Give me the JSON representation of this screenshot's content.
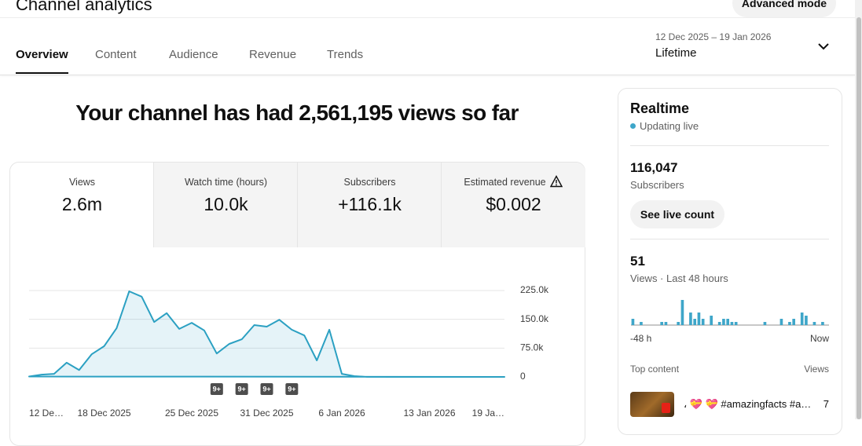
{
  "header": {
    "title": "Channel analytics",
    "advanced_mode": "Advanced mode"
  },
  "tabs": [
    "Overview",
    "Content",
    "Audience",
    "Revenue",
    "Trends"
  ],
  "active_tab": 0,
  "date_range": {
    "dates": "12 Dec 2025 – 19 Jan 2026",
    "label": "Lifetime"
  },
  "headline": "Your channel has had 2,561,195 views so far",
  "metrics": [
    {
      "label": "Views",
      "value": "2.6m"
    },
    {
      "label": "Watch time (hours)",
      "value": "10.0k"
    },
    {
      "label": "Subscribers",
      "value": "+116.1k"
    },
    {
      "label": "Estimated revenue",
      "value": "$0.002"
    }
  ],
  "selected_metric": 0,
  "realtime": {
    "title": "Realtime",
    "status": "Updating live",
    "subscribers": "116,047",
    "subscribers_label": "Subscribers",
    "button": "See live count",
    "views": "51",
    "views_label": "Views · Last 48 hours",
    "top_content_label": "Top content",
    "top_content_views_label": "Views",
    "top_content": [
      {
        "title": "، 💝 💝 #amazingfacts #a…",
        "views": "7"
      }
    ]
  },
  "chart_data": [
    {
      "type": "line",
      "categories": [
        "12 De…",
        null,
        null,
        null,
        null,
        null,
        "18 Dec 2025",
        null,
        null,
        null,
        null,
        null,
        null,
        "25 Dec 2025",
        null,
        null,
        null,
        null,
        null,
        "31 Dec 2025",
        null,
        null,
        null,
        null,
        null,
        "6 Jan 2026",
        null,
        null,
        null,
        null,
        null,
        null,
        "13 Jan 2026",
        null,
        null,
        null,
        null,
        null,
        "19 Ja…"
      ],
      "values": [
        1000,
        6000,
        8000,
        37000,
        18000,
        59000,
        80000,
        127000,
        223000,
        209000,
        143000,
        166000,
        125000,
        141000,
        121000,
        61000,
        86000,
        98000,
        135000,
        131000,
        149000,
        123000,
        108000,
        43000,
        123000,
        8000,
        2000,
        0,
        0,
        0,
        0,
        0,
        0,
        0,
        0,
        0,
        0,
        0,
        0
      ],
      "color": "#2ba0c2",
      "ylim": [
        0,
        225000
      ],
      "yticks": [
        {
          "value": 0,
          "label": "0"
        },
        {
          "value": 75000,
          "label": "75.0k"
        },
        {
          "value": 150000,
          "label": "150.0k"
        },
        {
          "value": 225000,
          "label": "225.0k"
        }
      ],
      "grid": true,
      "annotations": [
        {
          "index": 15,
          "label": "9+"
        },
        {
          "index": 17,
          "label": "9+"
        },
        {
          "index": 19,
          "label": "9+"
        },
        {
          "index": 21,
          "label": "9+"
        }
      ]
    },
    {
      "type": "bar",
      "categories": [
        "-48 h",
        null,
        null,
        null,
        null,
        null,
        null,
        null,
        null,
        null,
        null,
        null,
        null,
        null,
        null,
        null,
        null,
        null,
        null,
        null,
        null,
        null,
        null,
        null,
        null,
        null,
        null,
        null,
        null,
        null,
        null,
        null,
        null,
        null,
        null,
        null,
        null,
        null,
        null,
        null,
        null,
        null,
        null,
        null,
        null,
        null,
        null,
        "Now"
      ],
      "values": [
        2,
        0,
        1,
        0,
        0,
        0,
        0,
        1,
        1,
        0,
        0,
        1,
        8,
        0,
        4,
        2,
        4,
        2,
        0,
        3,
        0,
        1,
        2,
        2,
        1,
        1,
        0,
        0,
        0,
        0,
        0,
        0,
        1,
        0,
        0,
        0,
        2,
        0,
        1,
        2,
        0,
        4,
        3,
        0,
        1,
        0,
        1,
        0
      ],
      "color": "#3ea6c9"
    }
  ]
}
